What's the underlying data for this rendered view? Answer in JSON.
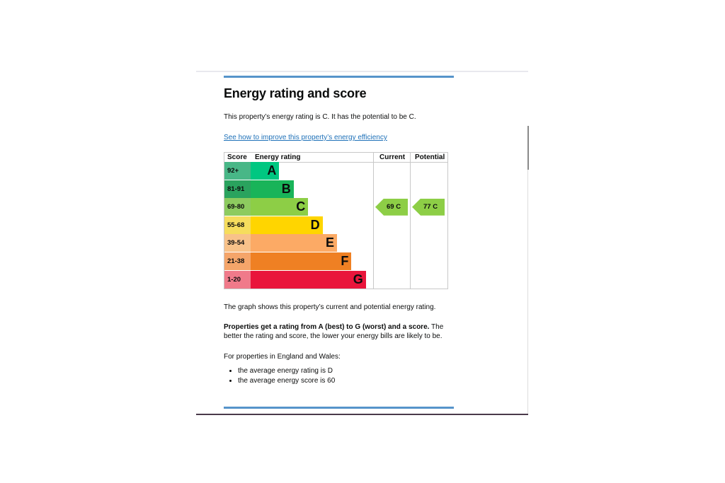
{
  "page": {
    "title": "Energy rating and score",
    "intro": "This property’s energy rating is C. It has the potential to be C.",
    "link": "See how to improve this property’s energy efficiency",
    "graph_note": "The graph shows this property’s current and potential energy rating.",
    "rating_bold": "Properties get a rating from A (best) to G (worst) and a score.",
    "rating_rest": " The better the rating and score, the lower your energy bills are likely to be.",
    "region_note": "For properties in England and Wales:",
    "averages": [
      "the average energy rating is D",
      "the average energy score is 60"
    ]
  },
  "chart_data": {
    "type": "bar",
    "headers": {
      "score": "Score",
      "rating": "Energy rating",
      "current": "Current",
      "potential": "Potential"
    },
    "bands": [
      {
        "score": "92+",
        "letter": "A",
        "score_color": "#48b787",
        "bar_color": "#00c781",
        "relative_length": 1
      },
      {
        "score": "81-91",
        "letter": "B",
        "score_color": "#2aa35e",
        "bar_color": "#19b459",
        "relative_length": 2
      },
      {
        "score": "69-80",
        "letter": "C",
        "score_color": "#8dcb5f",
        "bar_color": "#8dce46",
        "relative_length": 3
      },
      {
        "score": "55-68",
        "letter": "D",
        "score_color": "#f6dd5d",
        "bar_color": "#ffd500",
        "relative_length": 4
      },
      {
        "score": "39-54",
        "letter": "E",
        "score_color": "#f8c28a",
        "bar_color": "#fcaa65",
        "relative_length": 5
      },
      {
        "score": "21-38",
        "letter": "F",
        "score_color": "#f5a56a",
        "bar_color": "#ef8023",
        "relative_length": 6
      },
      {
        "score": "1-20",
        "letter": "G",
        "score_color": "#f07a8a",
        "bar_color": "#e9153b",
        "relative_length": 7
      }
    ],
    "current": {
      "score": 69,
      "rating": "C",
      "label": "69  C",
      "color": "#8dce46"
    },
    "potential": {
      "score": 77,
      "rating": "C",
      "label": "77  C",
      "color": "#8dce46"
    }
  }
}
